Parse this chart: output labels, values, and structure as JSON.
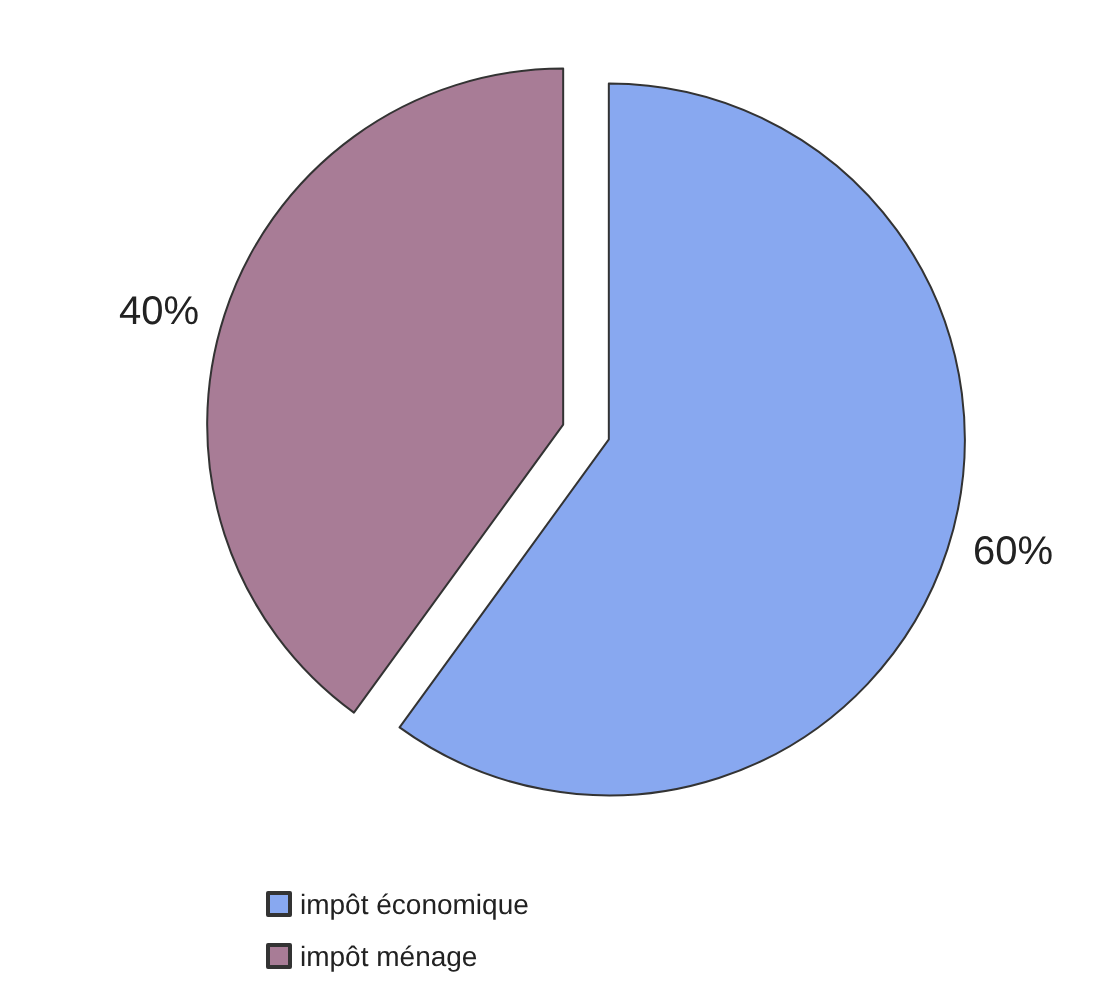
{
  "chart_data": {
    "type": "pie",
    "categories": [
      "impôt économique",
      "impôt ménage"
    ],
    "values": [
      60,
      40
    ],
    "colors": [
      "#88a8f0",
      "#a87c96"
    ],
    "value_labels": [
      "60%",
      "40%"
    ],
    "legend": "bottom left"
  }
}
